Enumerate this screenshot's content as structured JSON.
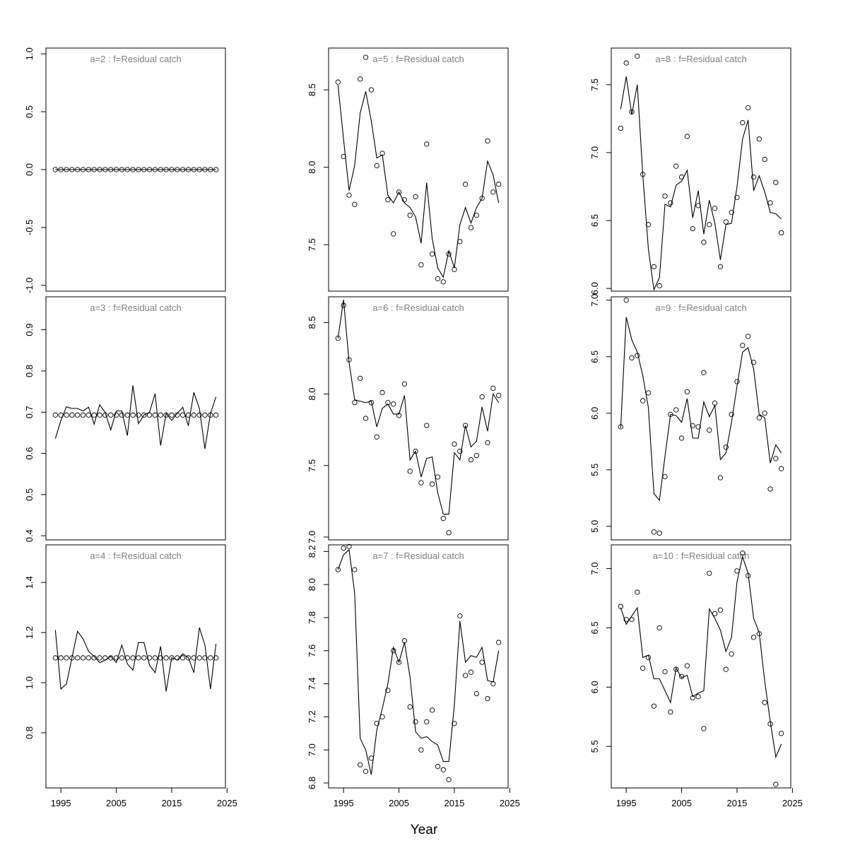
{
  "figure": {
    "xlabel": "Year"
  },
  "chart_data": [
    {
      "type": "line+scatter",
      "title": "a=2  :  f=Residual catch",
      "ylim": [
        -1.05,
        1.05
      ],
      "yticks": [
        -1.0,
        -0.5,
        0.0,
        0.5,
        1.0
      ],
      "ytick_labels": [
        "-1.0",
        "-0.5",
        "0.0",
        "0.5",
        "1.0"
      ],
      "xlim": [
        1992.3,
        2024.7
      ],
      "xticks": [
        1995,
        2005,
        2015,
        2025
      ],
      "xtick_labels": [],
      "x": [
        1994,
        1995,
        1996,
        1997,
        1998,
        1999,
        2000,
        2001,
        2002,
        2003,
        2004,
        2005,
        2006,
        2007,
        2008,
        2009,
        2010,
        2011,
        2012,
        2013,
        2014,
        2015,
        2016,
        2017,
        2018,
        2019,
        2020,
        2021,
        2022,
        2023
      ],
      "series": [
        {
          "values": [
            0,
            0,
            0,
            0,
            0,
            0,
            0,
            0,
            0,
            0,
            0,
            0,
            0,
            0,
            0,
            0,
            0,
            0,
            0,
            0,
            0,
            0,
            0,
            0,
            0,
            0,
            0,
            0,
            0,
            0
          ],
          "style": "line"
        },
        {
          "values": [
            0,
            0,
            0,
            0,
            0,
            0,
            0,
            0,
            0,
            0,
            0,
            0,
            0,
            0,
            0,
            0,
            0,
            0,
            0,
            0,
            0,
            0,
            0,
            0,
            0,
            0,
            0,
            0,
            0,
            0
          ],
          "style": "points"
        }
      ]
    },
    {
      "type": "line+scatter",
      "title": "a=3  :  f=Residual catch",
      "ylim": [
        0.39,
        0.98
      ],
      "yticks": [
        0.4,
        0.5,
        0.6,
        0.7,
        0.8,
        0.9
      ],
      "ytick_labels": [
        "0.4",
        "0.5",
        "0.6",
        "0.7",
        "0.8",
        "0.9"
      ],
      "xlim": [
        1992.3,
        2024.7
      ],
      "xticks": [
        1995,
        2005,
        2015,
        2025
      ],
      "xtick_labels": [],
      "x": [
        1994,
        1995,
        1996,
        1997,
        1998,
        1999,
        2000,
        2001,
        2002,
        2003,
        2004,
        2005,
        2006,
        2007,
        2008,
        2009,
        2010,
        2011,
        2012,
        2013,
        2014,
        2015,
        2016,
        2017,
        2018,
        2019,
        2020,
        2021,
        2022,
        2023
      ],
      "series": [
        {
          "values": [
            0.636,
            0.68,
            0.713,
            0.709,
            0.709,
            0.703,
            0.712,
            0.671,
            0.718,
            0.699,
            0.657,
            0.703,
            0.703,
            0.643,
            0.765,
            0.672,
            0.693,
            0.7,
            0.745,
            0.619,
            0.697,
            0.68,
            0.697,
            0.712,
            0.667,
            0.748,
            0.709,
            0.611,
            0.697,
            0.737
          ],
          "style": "line"
        },
        {
          "values": [
            0.693,
            0.693,
            0.693,
            0.693,
            0.693,
            0.693,
            0.693,
            0.693,
            0.693,
            0.693,
            0.693,
            0.693,
            0.693,
            0.693,
            0.693,
            0.693,
            0.693,
            0.693,
            0.693,
            0.693,
            0.693,
            0.693,
            0.693,
            0.693,
            0.693,
            0.693,
            0.693,
            0.693,
            0.693,
            0.693
          ],
          "style": "points"
        }
      ]
    },
    {
      "type": "line+scatter",
      "title": "a=4  :  f=Residual catch",
      "ylim": [
        0.58,
        1.55
      ],
      "yticks": [
        0.8,
        1.0,
        1.2,
        1.4
      ],
      "ytick_labels": [
        "0.8",
        "1.0",
        "1.2",
        "1.4"
      ],
      "xlim": [
        1992.3,
        2024.7
      ],
      "xticks": [
        1995,
        2005,
        2015,
        2025
      ],
      "xtick_labels": [
        "1995",
        "2005",
        "2015",
        "2025"
      ],
      "x": [
        1994,
        1995,
        1996,
        1997,
        1998,
        1999,
        2000,
        2001,
        2002,
        2003,
        2004,
        2005,
        2006,
        2007,
        2008,
        2009,
        2010,
        2011,
        2012,
        2013,
        2014,
        2015,
        2016,
        2017,
        2018,
        2019,
        2020,
        2021,
        2022,
        2023
      ],
      "series": [
        {
          "values": [
            1.21,
            0.975,
            0.995,
            1.1,
            1.205,
            1.175,
            1.125,
            1.105,
            1.08,
            1.09,
            1.105,
            1.08,
            1.15,
            1.075,
            1.05,
            1.16,
            1.16,
            1.07,
            1.04,
            1.145,
            0.965,
            1.1,
            1.09,
            1.115,
            1.1,
            1.04,
            1.22,
            1.15,
            0.975,
            1.155
          ],
          "style": "line"
        },
        {
          "values": [
            1.099,
            1.099,
            1.099,
            1.099,
            1.099,
            1.099,
            1.099,
            1.099,
            1.099,
            1.099,
            1.099,
            1.099,
            1.099,
            1.099,
            1.099,
            1.099,
            1.099,
            1.099,
            1.099,
            1.099,
            1.099,
            1.099,
            1.099,
            1.099,
            1.099,
            1.099,
            1.099,
            1.099,
            1.099,
            1.099
          ],
          "style": "points"
        }
      ]
    },
    {
      "type": "line+scatter",
      "title": "a=5  :  f=Residual catch",
      "ylim": [
        7.2,
        8.77
      ],
      "yticks": [
        7.5,
        8.0,
        8.5
      ],
      "ytick_labels": [
        "7.5",
        "8.0",
        "8.5"
      ],
      "xlim": [
        1992.3,
        2024.7
      ],
      "xticks": [
        1995,
        2005,
        2015,
        2025
      ],
      "xtick_labels": [],
      "x": [
        1994,
        1995,
        1996,
        1997,
        1998,
        1999,
        2000,
        2001,
        2002,
        2003,
        2004,
        2005,
        2006,
        2007,
        2008,
        2009,
        2010,
        2011,
        2012,
        2013,
        2014,
        2015,
        2016,
        2017,
        2018,
        2019,
        2020,
        2021,
        2022,
        2023
      ],
      "series": [
        {
          "values": [
            8.53,
            8.18,
            7.85,
            8.01,
            8.35,
            8.49,
            8.3,
            8.06,
            8.08,
            7.82,
            7.77,
            7.84,
            7.77,
            7.74,
            7.68,
            7.51,
            7.9,
            7.54,
            7.35,
            7.29,
            7.46,
            7.35,
            7.63,
            7.74,
            7.64,
            7.74,
            7.8,
            8.04,
            7.95,
            7.77
          ],
          "style": "line"
        },
        {
          "values": [
            8.55,
            8.07,
            7.82,
            7.76,
            8.57,
            8.71,
            8.5,
            8.01,
            8.09,
            7.79,
            7.57,
            7.84,
            7.79,
            7.69,
            7.81,
            7.37,
            8.15,
            7.44,
            7.28,
            7.26,
            7.44,
            7.34,
            7.52,
            7.89,
            7.61,
            7.69,
            7.8,
            8.17,
            7.84,
            7.89
          ],
          "style": "points"
        }
      ]
    },
    {
      "type": "line+scatter",
      "title": "a=6  :  f=Residual catch",
      "ylim": [
        6.98,
        8.68
      ],
      "yticks": [
        7.0,
        7.5,
        8.0,
        8.5
      ],
      "ytick_labels": [
        "7.0",
        "7.5",
        "8.0",
        "8.5"
      ],
      "xlim": [
        1992.3,
        2024.7
      ],
      "xticks": [
        1995,
        2005,
        2015,
        2025
      ],
      "xtick_labels": [],
      "x": [
        1994,
        1995,
        1996,
        1997,
        1998,
        1999,
        2000,
        2001,
        2002,
        2003,
        2004,
        2005,
        2006,
        2007,
        2008,
        2009,
        2010,
        2011,
        2012,
        2013,
        2014,
        2015,
        2016,
        2017,
        2018,
        2019,
        2020,
        2021,
        2022,
        2023
      ],
      "series": [
        {
          "values": [
            8.39,
            8.66,
            8.22,
            7.96,
            7.95,
            7.94,
            7.95,
            7.77,
            7.9,
            7.93,
            7.86,
            7.86,
            7.99,
            7.54,
            7.6,
            7.42,
            7.55,
            7.56,
            7.31,
            7.16,
            7.16,
            7.59,
            7.54,
            7.78,
            7.63,
            7.67,
            7.91,
            7.74,
            8.0,
            7.94
          ],
          "style": "line"
        },
        {
          "values": [
            8.39,
            8.62,
            8.24,
            7.94,
            8.11,
            7.83,
            7.94,
            7.7,
            8.01,
            7.94,
            7.93,
            7.85,
            8.07,
            7.46,
            7.6,
            7.38,
            7.78,
            7.37,
            7.42,
            7.13,
            7.03,
            7.65,
            7.6,
            7.78,
            7.54,
            7.57,
            7.98,
            7.66,
            8.04,
            7.99
          ],
          "style": "points"
        }
      ]
    },
    {
      "type": "line+scatter",
      "title": "a=7  :  f=Residual catch",
      "ylim": [
        6.77,
        8.24
      ],
      "yticks": [
        6.8,
        7.0,
        7.2,
        7.4,
        7.6,
        7.8,
        8.0,
        8.2
      ],
      "ytick_labels": [
        "6.8",
        "7.0",
        "7.2",
        "7.4",
        "7.6",
        "7.8",
        "8.0",
        "8.2"
      ],
      "xlim": [
        1992.3,
        2024.7
      ],
      "xticks": [
        1995,
        2005,
        2015,
        2025
      ],
      "xtick_labels": [
        "1995",
        "2005",
        "2015",
        "2025"
      ],
      "x": [
        1994,
        1995,
        1996,
        1997,
        1998,
        1999,
        2000,
        2001,
        2002,
        2003,
        2004,
        2005,
        2006,
        2007,
        2008,
        2009,
        2010,
        2011,
        2012,
        2013,
        2014,
        2015,
        2016,
        2017,
        2018,
        2019,
        2020,
        2021,
        2022,
        2023
      ],
      "series": [
        {
          "values": [
            8.09,
            8.18,
            8.21,
            7.95,
            7.07,
            7.0,
            6.85,
            7.12,
            7.25,
            7.4,
            7.62,
            7.53,
            7.65,
            7.44,
            7.11,
            7.07,
            7.08,
            7.05,
            7.03,
            6.93,
            6.93,
            7.27,
            7.78,
            7.53,
            7.57,
            7.56,
            7.62,
            7.42,
            7.41,
            7.6
          ],
          "style": "line"
        },
        {
          "values": [
            8.09,
            8.22,
            8.23,
            8.09,
            6.91,
            6.87,
            6.95,
            7.16,
            7.2,
            7.36,
            7.6,
            7.53,
            7.66,
            7.26,
            7.17,
            7.0,
            7.17,
            7.24,
            6.9,
            6.88,
            6.82,
            7.16,
            7.81,
            7.45,
            7.47,
            7.34,
            7.53,
            7.31,
            7.4,
            7.65
          ],
          "style": "points"
        }
      ]
    },
    {
      "type": "line+scatter",
      "title": "a=8  :  f=Residual catch",
      "ylim": [
        5.98,
        7.77
      ],
      "yticks": [
        6.0,
        6.5,
        7.0,
        7.5
      ],
      "ytick_labels": [
        "6.0",
        "6.5",
        "7.0",
        "7.5"
      ],
      "xlim": [
        1992.3,
        2024.7
      ],
      "xticks": [
        1995,
        2005,
        2015,
        2025
      ],
      "xtick_labels": [],
      "x": [
        1994,
        1995,
        1996,
        1997,
        1998,
        1999,
        2000,
        2001,
        2002,
        2003,
        2004,
        2005,
        2006,
        2007,
        2008,
        2009,
        2010,
        2011,
        2012,
        2013,
        2014,
        2015,
        2016,
        2017,
        2018,
        2019,
        2020,
        2021,
        2022,
        2023
      ],
      "series": [
        {
          "values": [
            7.32,
            7.56,
            7.28,
            7.5,
            6.83,
            6.29,
            5.99,
            6.08,
            6.62,
            6.6,
            6.76,
            6.79,
            6.87,
            6.52,
            6.72,
            6.4,
            6.65,
            6.48,
            6.21,
            6.47,
            6.48,
            6.75,
            7.1,
            7.24,
            6.72,
            6.83,
            6.71,
            6.56,
            6.55,
            6.51
          ],
          "style": "line"
        },
        {
          "values": [
            7.18,
            7.66,
            7.3,
            7.71,
            6.84,
            6.47,
            6.16,
            6.02,
            6.68,
            6.63,
            6.9,
            6.82,
            7.12,
            6.44,
            6.61,
            6.34,
            6.47,
            6.59,
            6.16,
            6.49,
            6.56,
            6.67,
            7.22,
            7.33,
            6.82,
            7.1,
            6.95,
            6.63,
            6.78,
            6.41
          ],
          "style": "points"
        }
      ]
    },
    {
      "type": "line+scatter",
      "title": "a=9  :  f=Residual catch",
      "ylim": [
        4.88,
        7.03
      ],
      "yticks": [
        5.0,
        5.5,
        6.0,
        6.5,
        7.0
      ],
      "ytick_labels": [
        "5.0",
        "5.5",
        "6.0",
        "6.5",
        "7.0"
      ],
      "xlim": [
        1992.3,
        2024.7
      ],
      "xticks": [
        1995,
        2005,
        2015,
        2025
      ],
      "xtick_labels": [],
      "x": [
        1994,
        1995,
        1996,
        1997,
        1998,
        1999,
        2000,
        2001,
        2002,
        2003,
        2004,
        2005,
        2006,
        2007,
        2008,
        2009,
        2010,
        2011,
        2012,
        2013,
        2014,
        2015,
        2016,
        2017,
        2018,
        2019,
        2020,
        2021,
        2022,
        2023
      ],
      "series": [
        {
          "values": [
            5.87,
            6.85,
            6.65,
            6.54,
            6.33,
            6.05,
            5.29,
            5.23,
            5.62,
            5.99,
            5.98,
            5.92,
            6.13,
            5.78,
            5.78,
            6.1,
            5.97,
            6.07,
            5.59,
            5.65,
            5.92,
            6.24,
            6.54,
            6.58,
            6.39,
            5.99,
            5.96,
            5.56,
            5.72,
            5.65
          ],
          "style": "line"
        },
        {
          "values": [
            5.88,
            7.0,
            6.49,
            6.51,
            6.11,
            6.18,
            4.95,
            4.94,
            5.44,
            5.99,
            6.03,
            5.78,
            6.19,
            5.89,
            5.88,
            6.36,
            5.85,
            6.09,
            5.43,
            5.7,
            5.99,
            6.28,
            6.6,
            6.68,
            6.45,
            5.96,
            6.0,
            5.33,
            5.6,
            5.51
          ],
          "style": "points"
        }
      ]
    },
    {
      "type": "line+scatter",
      "title": "a=10  :  f=Residual catch",
      "ylim": [
        5.15,
        7.2
      ],
      "yticks": [
        5.5,
        6.0,
        6.5,
        7.0
      ],
      "ytick_labels": [
        "5.5",
        "6.0",
        "6.5",
        "7.0"
      ],
      "xlim": [
        1992.3,
        2024.7
      ],
      "xticks": [
        1995,
        2005,
        2015,
        2025
      ],
      "xtick_labels": [
        "1995",
        "2005",
        "2015",
        "2025"
      ],
      "x": [
        1994,
        1995,
        1996,
        1997,
        1998,
        1999,
        2000,
        2001,
        2002,
        2003,
        2004,
        2005,
        2006,
        2007,
        2008,
        2009,
        2010,
        2011,
        2012,
        2013,
        2014,
        2015,
        2016,
        2017,
        2018,
        2019,
        2020,
        2021,
        2022,
        2023
      ],
      "series": [
        {
          "values": [
            6.67,
            6.53,
            6.6,
            6.67,
            6.25,
            6.27,
            6.07,
            6.07,
            5.97,
            5.87,
            6.16,
            6.08,
            6.1,
            5.92,
            5.95,
            5.97,
            6.66,
            6.58,
            6.48,
            6.3,
            6.42,
            6.89,
            7.1,
            6.96,
            6.58,
            6.46,
            6.05,
            5.71,
            5.41,
            5.52
          ],
          "style": "line"
        },
        {
          "values": [
            6.68,
            6.57,
            6.57,
            6.8,
            6.16,
            6.25,
            5.84,
            6.5,
            6.13,
            5.79,
            6.15,
            6.09,
            6.18,
            5.91,
            5.92,
            5.65,
            6.96,
            6.62,
            6.65,
            6.15,
            6.28,
            6.98,
            7.13,
            6.94,
            6.42,
            6.45,
            5.87,
            5.69,
            5.18,
            5.61
          ],
          "style": "points"
        }
      ]
    }
  ]
}
